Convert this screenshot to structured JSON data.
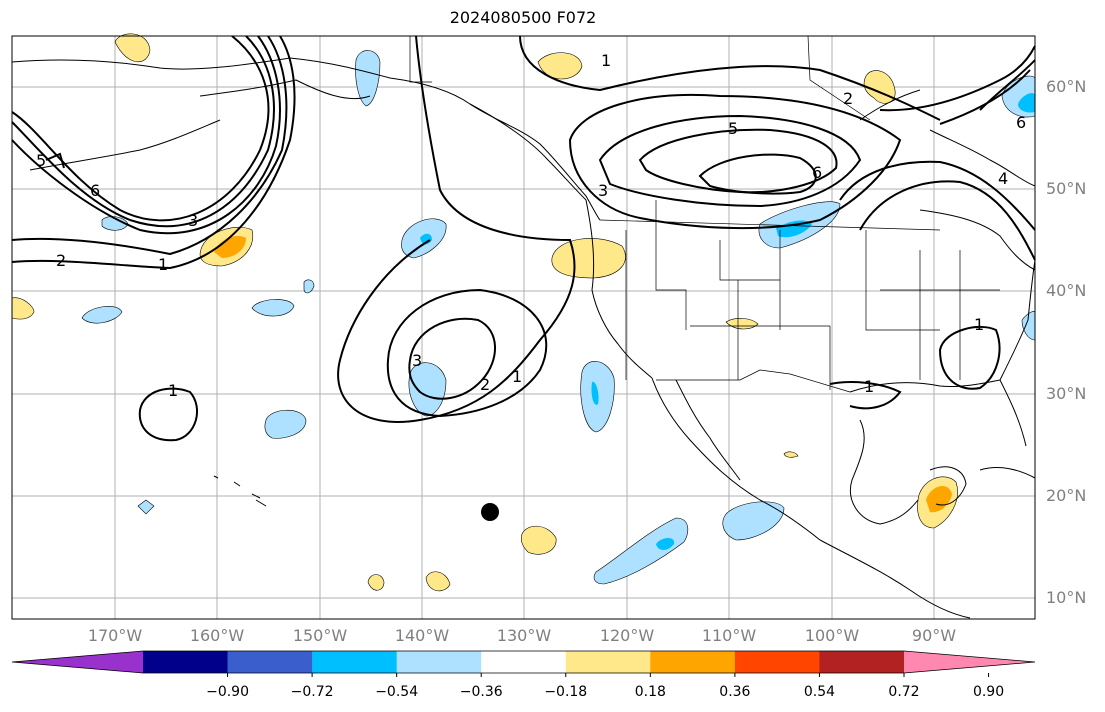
{
  "title": "2024080500 F072",
  "lat_labels": [
    "60°N",
    "50°N",
    "40°N",
    "30°N",
    "20°N",
    "10°N"
  ],
  "lon_labels": [
    "170°W",
    "160°W",
    "150°W",
    "140°W",
    "130°W",
    "120°W",
    "110°W",
    "100°W",
    "90°W"
  ],
  "colorbar": {
    "ticks": [
      "−0.90",
      "−0.72",
      "−0.54",
      "−0.36",
      "−0.18",
      "0.18",
      "0.36",
      "0.54",
      "0.72",
      "0.90"
    ],
    "colors": [
      "#9932CC",
      "#00008B",
      "#3A5FCD",
      "#00BFFF",
      "#ADE1FF",
      "#FFFFFF",
      "#FFE88A",
      "#FFA500",
      "#FF4500",
      "#B22222",
      "#FF88B0"
    ]
  },
  "contour_labels": [
    "1",
    "2",
    "3",
    "4",
    "5",
    "6"
  ],
  "colors": {
    "contour": "#000000",
    "positive_light": "#FFE88A",
    "positive_mid": "#FFA500",
    "negative_light": "#ADE1FF",
    "negative_mid": "#00BFFF",
    "grid": "#B0B0B0",
    "label": "#808080"
  }
}
